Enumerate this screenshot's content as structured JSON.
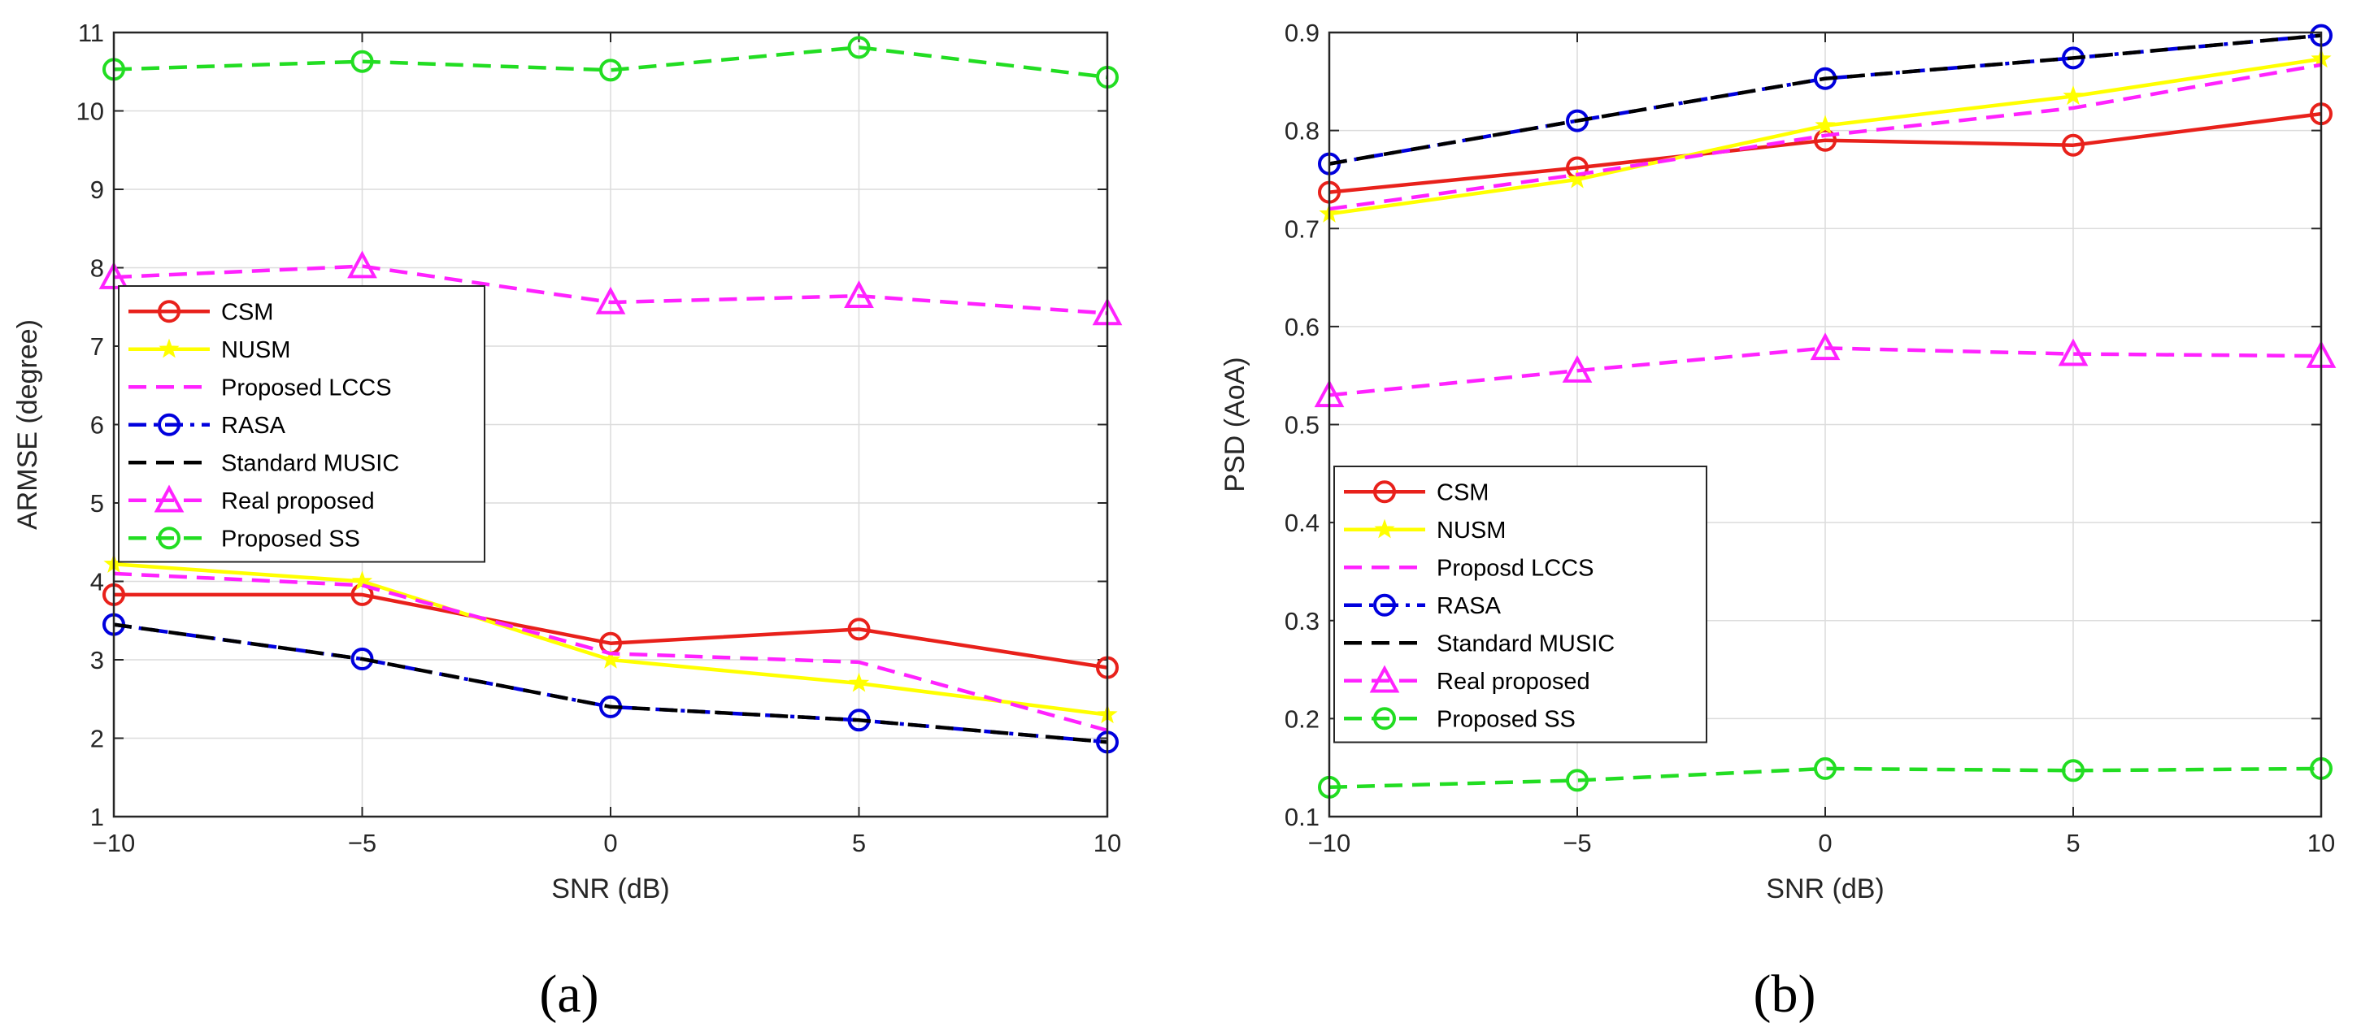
{
  "figure": {
    "panels": [
      "(a)",
      "(b)"
    ]
  },
  "chart_data": [
    {
      "type": "line",
      "panel_label": "(a)",
      "xlabel": "SNR (dB)",
      "ylabel": "ARMSE (degree)",
      "x": [
        -10,
        -5,
        0,
        5,
        10
      ],
      "xlim": [
        -10,
        10
      ],
      "ylim": [
        1,
        11
      ],
      "xticks": [
        -10,
        -5,
        0,
        5,
        10
      ],
      "xtick_labels": [
        "−10",
        "−5",
        "0",
        "5",
        "10"
      ],
      "yticks": [
        1,
        2,
        3,
        4,
        5,
        6,
        7,
        8,
        9,
        10,
        11
      ],
      "ytick_labels": [
        "1",
        "2",
        "3",
        "4",
        "5",
        "6",
        "7",
        "8",
        "9",
        "10",
        "11"
      ],
      "grid": true,
      "legend_position": "middle-left",
      "series": [
        {
          "name": "CSM",
          "values": [
            3.83,
            3.83,
            3.21,
            3.39,
            2.9
          ],
          "color": "#e8211b",
          "dash": "solid",
          "marker": "circle"
        },
        {
          "name": "NUSM",
          "values": [
            4.22,
            4.0,
            3.0,
            2.7,
            2.3
          ],
          "color": "#ffff00",
          "dash": "solid",
          "marker": "star"
        },
        {
          "name": "Proposed LCCS",
          "values": [
            4.1,
            3.95,
            3.08,
            2.97,
            2.1
          ],
          "color": "#ff22ff",
          "dash": "dashed",
          "marker": "none"
        },
        {
          "name": "RASA",
          "values": [
            3.45,
            3.01,
            2.4,
            2.23,
            1.95
          ],
          "color": "#0000dd",
          "dash": "dashdot",
          "marker": "circle"
        },
        {
          "name": "Standard MUSIC",
          "values": [
            3.45,
            3.01,
            2.4,
            2.23,
            1.95
          ],
          "color": "#000000",
          "dash": "dashed",
          "marker": "none"
        },
        {
          "name": "Real proposed",
          "values": [
            7.88,
            8.02,
            7.56,
            7.64,
            7.42
          ],
          "color": "#ff22ff",
          "dash": "dashed",
          "marker": "triangle"
        },
        {
          "name": "Proposed SS",
          "values": [
            10.53,
            10.63,
            10.52,
            10.81,
            10.43
          ],
          "color": "#22dd22",
          "dash": "dashed",
          "marker": "circle"
        }
      ]
    },
    {
      "type": "line",
      "panel_label": "(b)",
      "xlabel": "SNR (dB)",
      "ylabel": "PSD (AoA)",
      "x": [
        -10,
        -5,
        0,
        5,
        10
      ],
      "xlim": [
        -10,
        10
      ],
      "ylim": [
        0.1,
        0.9
      ],
      "xticks": [
        -10,
        -5,
        0,
        5,
        10
      ],
      "xtick_labels": [
        "−10",
        "−5",
        "0",
        "5",
        "10"
      ],
      "yticks": [
        0.1,
        0.2,
        0.3,
        0.4,
        0.5,
        0.6,
        0.7,
        0.8,
        0.9
      ],
      "ytick_labels": [
        "0.1",
        "0.2",
        "0.3",
        "0.4",
        "0.5",
        "0.6",
        "0.7",
        "0.8",
        "0.9"
      ],
      "grid": true,
      "legend_position": "lower-left",
      "series": [
        {
          "name": "CSM",
          "values": [
            0.737,
            0.762,
            0.79,
            0.785,
            0.817
          ],
          "color": "#e8211b",
          "dash": "solid",
          "marker": "circle"
        },
        {
          "name": "NUSM",
          "values": [
            0.715,
            0.75,
            0.805,
            0.835,
            0.873
          ],
          "color": "#ffff00",
          "dash": "solid",
          "marker": "star"
        },
        {
          "name": "Proposd LCCS",
          "values": [
            0.72,
            0.755,
            0.795,
            0.823,
            0.867
          ],
          "color": "#ff22ff",
          "dash": "dashed",
          "marker": "none"
        },
        {
          "name": "RASA",
          "values": [
            0.766,
            0.81,
            0.853,
            0.874,
            0.897
          ],
          "color": "#0000dd",
          "dash": "dashdot",
          "marker": "circle"
        },
        {
          "name": "Standard MUSIC",
          "values": [
            0.766,
            0.81,
            0.853,
            0.874,
            0.897
          ],
          "color": "#000000",
          "dash": "dashed",
          "marker": "none"
        },
        {
          "name": "Real proposed",
          "values": [
            0.53,
            0.555,
            0.578,
            0.572,
            0.57
          ],
          "color": "#ff22ff",
          "dash": "dashed",
          "marker": "triangle"
        },
        {
          "name": "Proposed SS",
          "values": [
            0.13,
            0.137,
            0.149,
            0.147,
            0.149
          ],
          "color": "#22dd22",
          "dash": "dashed",
          "marker": "circle"
        }
      ]
    }
  ]
}
